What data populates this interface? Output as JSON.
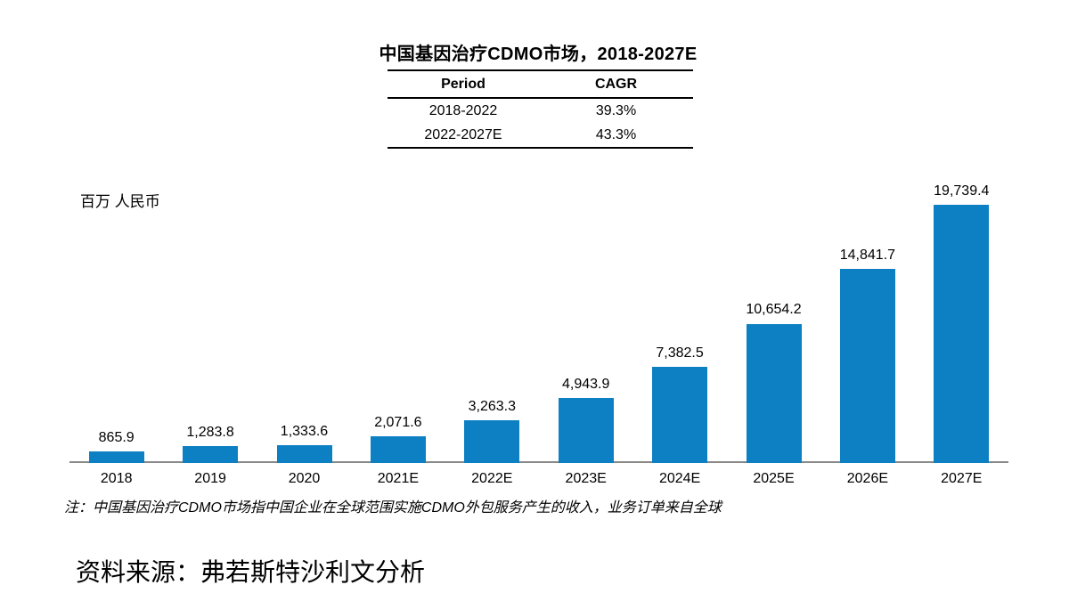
{
  "title": "中国基因治疗CDMO市场，2018-2027E",
  "cagr_table": {
    "headers": [
      "Period",
      "CAGR"
    ],
    "rows": [
      [
        "2018-2022",
        "39.3%"
      ],
      [
        "2022-2027E",
        "43.3%"
      ]
    ]
  },
  "unit_label": "百万 人民币",
  "chart_data": {
    "type": "bar",
    "title": "中国基因治疗CDMO市场，2018-2027E",
    "categories": [
      "2018",
      "2019",
      "2020",
      "2021E",
      "2022E",
      "2023E",
      "2024E",
      "2025E",
      "2026E",
      "2027E"
    ],
    "values": [
      865.9,
      1283.8,
      1333.6,
      2071.6,
      3263.3,
      4943.9,
      7382.5,
      10654.2,
      14841.7,
      19739.4
    ],
    "data_labels": [
      "865.9",
      "1,283.8",
      "1,333.6",
      "2,071.6",
      "3,263.3",
      "4,943.9",
      "7,382.5",
      "10,654.2",
      "14,841.7",
      "19,739.4"
    ],
    "xlabel": "",
    "ylabel": "百万 人民币",
    "ylim": [
      0,
      20000
    ],
    "grid": false,
    "legend": "none",
    "bar_color": "#0d80c4",
    "axis_color": "#8a8a8a",
    "label_color": "#000000"
  },
  "footnote": "注：中国基因治疗CDMO市场指中国企业在全球范围实施CDMO外包服务产生的收入，业务订单来自全球",
  "source": "资料来源：弗若斯特沙利文分析"
}
